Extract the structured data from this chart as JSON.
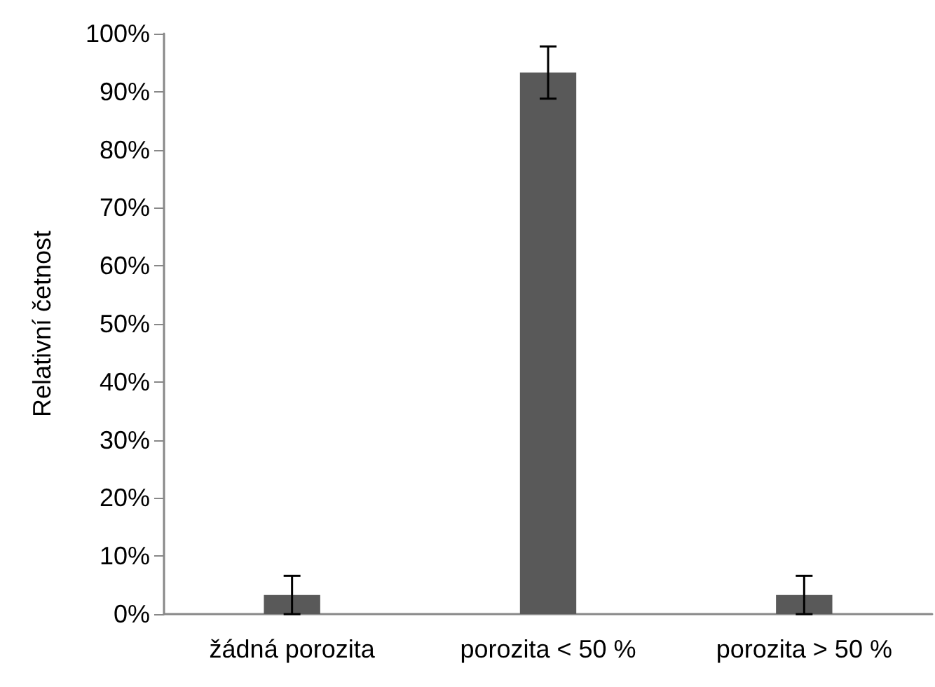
{
  "chart_data": {
    "type": "bar",
    "ylabel": "Relativní četnost",
    "categories": [
      "žádná porozita",
      "porozita < 50 %",
      "porozita > 50 %"
    ],
    "values": [
      3.3,
      93.3,
      3.3
    ],
    "color": "#595959",
    "errors": [
      3.3,
      4.5,
      3.3
    ],
    "ylim": [
      0,
      100
    ],
    "yticks": [
      {
        "value": 0,
        "label": "0%"
      },
      {
        "value": 10,
        "label": "10%"
      },
      {
        "value": 20,
        "label": "20%"
      },
      {
        "value": 30,
        "label": "30%"
      },
      {
        "value": 40,
        "label": "40%"
      },
      {
        "value": 50,
        "label": "50%"
      },
      {
        "value": 60,
        "label": "60%"
      },
      {
        "value": 70,
        "label": "70%"
      },
      {
        "value": 80,
        "label": "80%"
      },
      {
        "value": 90,
        "label": "90%"
      },
      {
        "value": 100,
        "label": "100%"
      }
    ],
    "grid": false
  }
}
